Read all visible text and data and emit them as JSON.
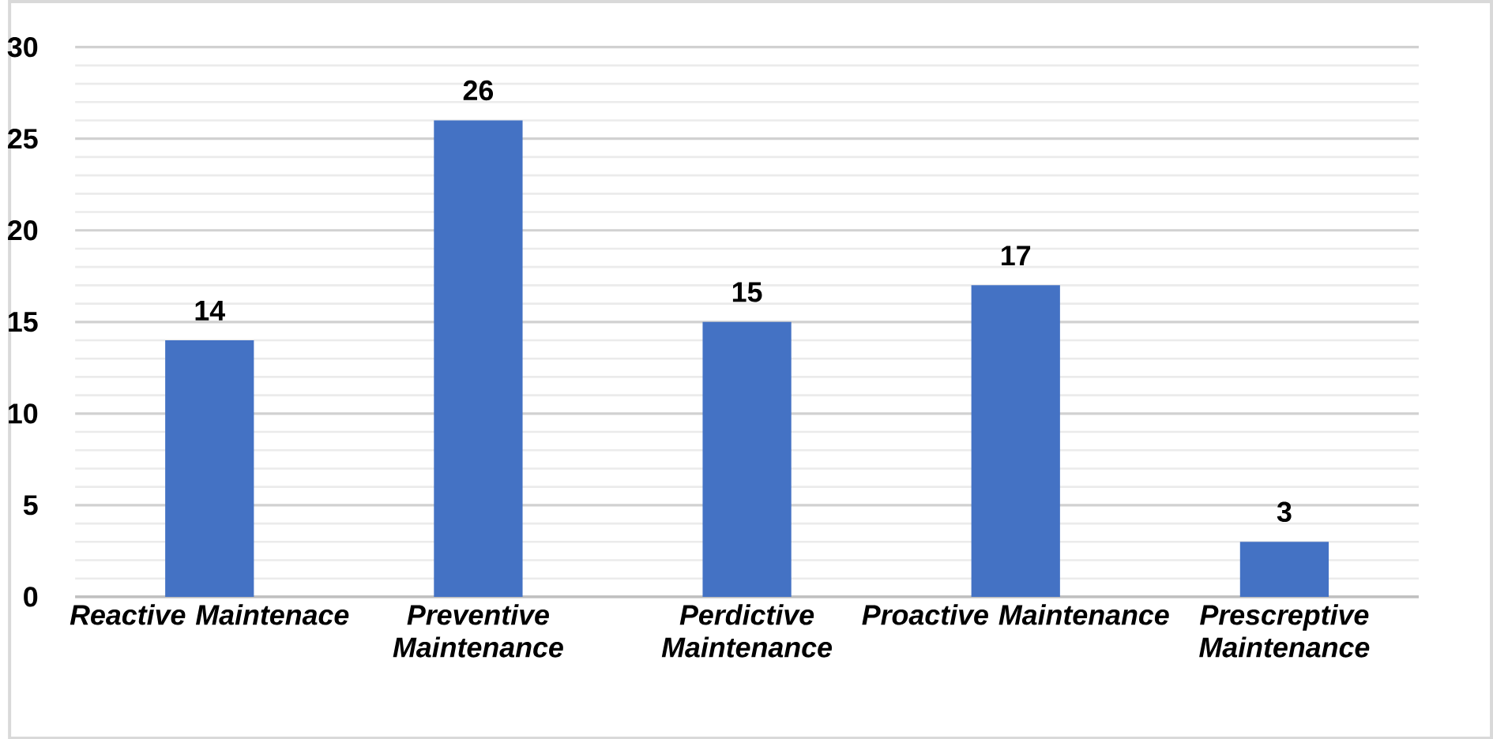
{
  "chart_data": {
    "type": "bar",
    "categories": [
      "Reactive Maintenace",
      "Preventive Maintenance",
      "Perdictive Maintenance",
      "Proactive Maintenance",
      "Prescreptive Maintenance"
    ],
    "values": [
      14,
      26,
      15,
      17,
      3
    ],
    "value_labels": [
      "14",
      "26",
      "15",
      "17",
      "3"
    ],
    "color": "#4472c4",
    "ylim": [
      0,
      30
    ],
    "yticks": [
      0,
      5,
      10,
      15,
      20,
      25,
      30
    ],
    "grid": "y"
  }
}
